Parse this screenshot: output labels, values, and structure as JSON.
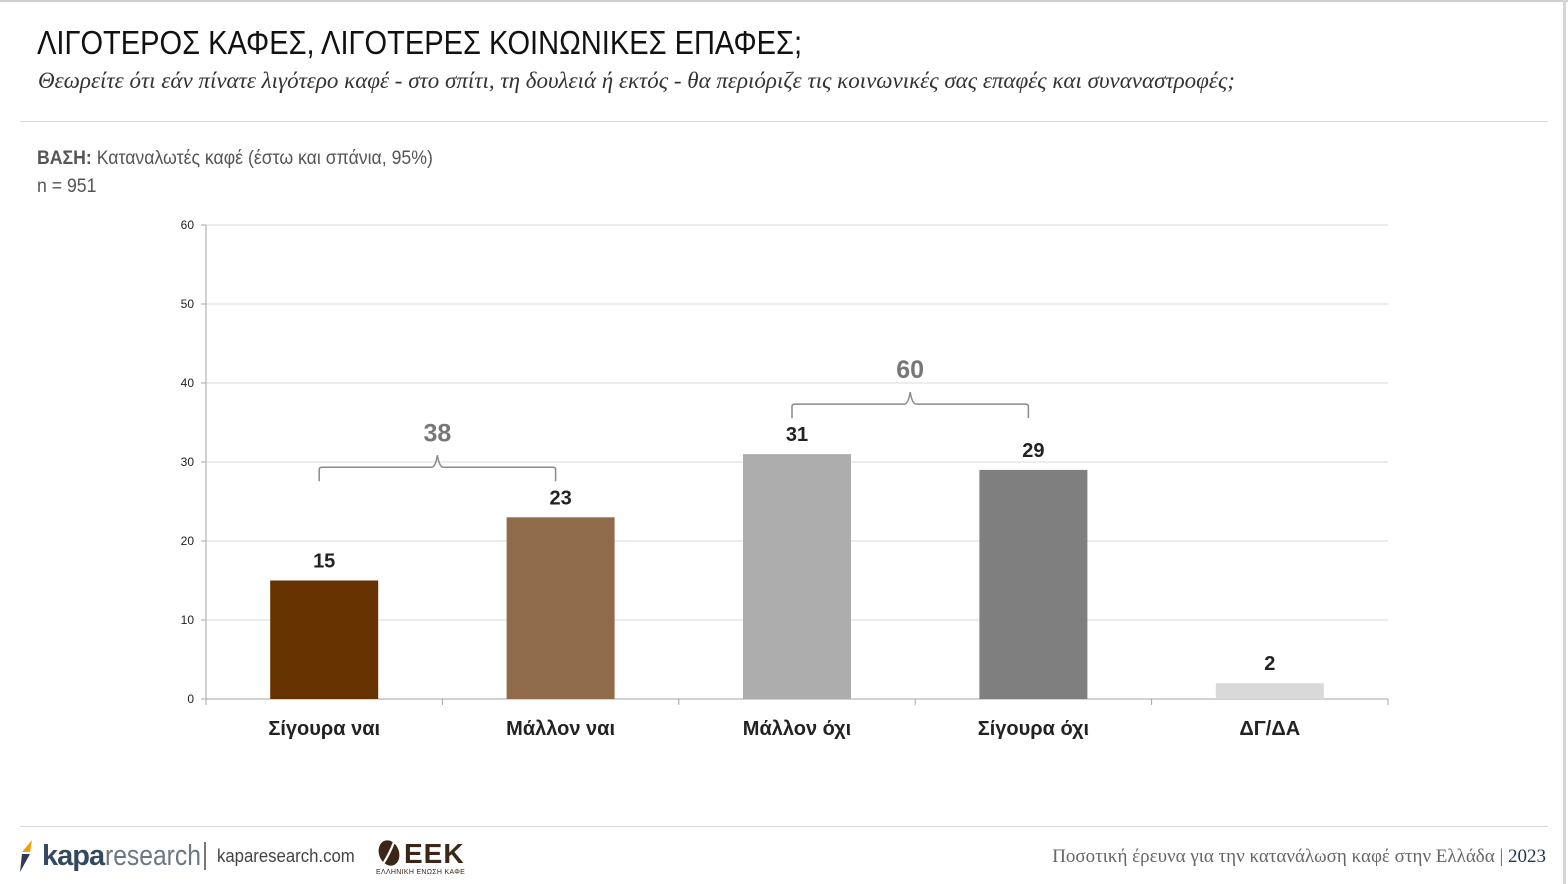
{
  "header": {
    "title": "ΛΙΓΟΤΕΡΟΣ ΚΑΦΕΣ, ΛΙΓΟΤΕΡΕΣ ΚΟΙΝΩΝΙΚΕΣ ΕΠΑΦΕΣ;",
    "subtitle": "Θεωρείτε ότι εάν πίνατε λιγότερο καφέ - στο σπίτι, τη δουλειά ή εκτός - θα περιόριζε τις κοινωνικές σας επαφές και συναναστροφές;"
  },
  "base": {
    "label": "ΒΑΣΗ:",
    "text": "Καταναλωτές καφέ (έστω και σπάνια, 95%)",
    "n": "n = 951"
  },
  "chart_data": {
    "type": "bar",
    "categories": [
      "Σίγουρα ναι",
      "Μάλλον ναι",
      "Μάλλον όχι",
      "Σίγουρα όχι",
      "ΔΓ/ΔΑ"
    ],
    "values": [
      15,
      23,
      31,
      29,
      2
    ],
    "bar_colors": [
      "#663300",
      "#8f6b4a",
      "#adadad",
      "#7f7f7f",
      "#d9d9d9"
    ],
    "ylim": [
      0,
      60
    ],
    "yticks": [
      0,
      10,
      20,
      30,
      40,
      50,
      60
    ],
    "grid": true,
    "groups": [
      {
        "from": 0,
        "to": 1,
        "total": 38
      },
      {
        "from": 2,
        "to": 3,
        "total": 60
      }
    ],
    "colors": {
      "grid": "#d9d9d9",
      "label": "#222222",
      "group_label": "#777777",
      "bracket": "#8a8a8a"
    }
  },
  "footer": {
    "brand_word": "kapa",
    "brand_suffix": "research",
    "url": "kaparesearch.com",
    "partner_logo_text": "ΕΕΚ",
    "partner_logo_sub": "ΕΛΛΗΝΙΚΗ ΕΝΩΣΗ ΚΑΦΕ",
    "survey_title": "Ποσοτική έρευνα για την κατανάλωση καφέ στην Ελλάδα",
    "year": "2023"
  }
}
